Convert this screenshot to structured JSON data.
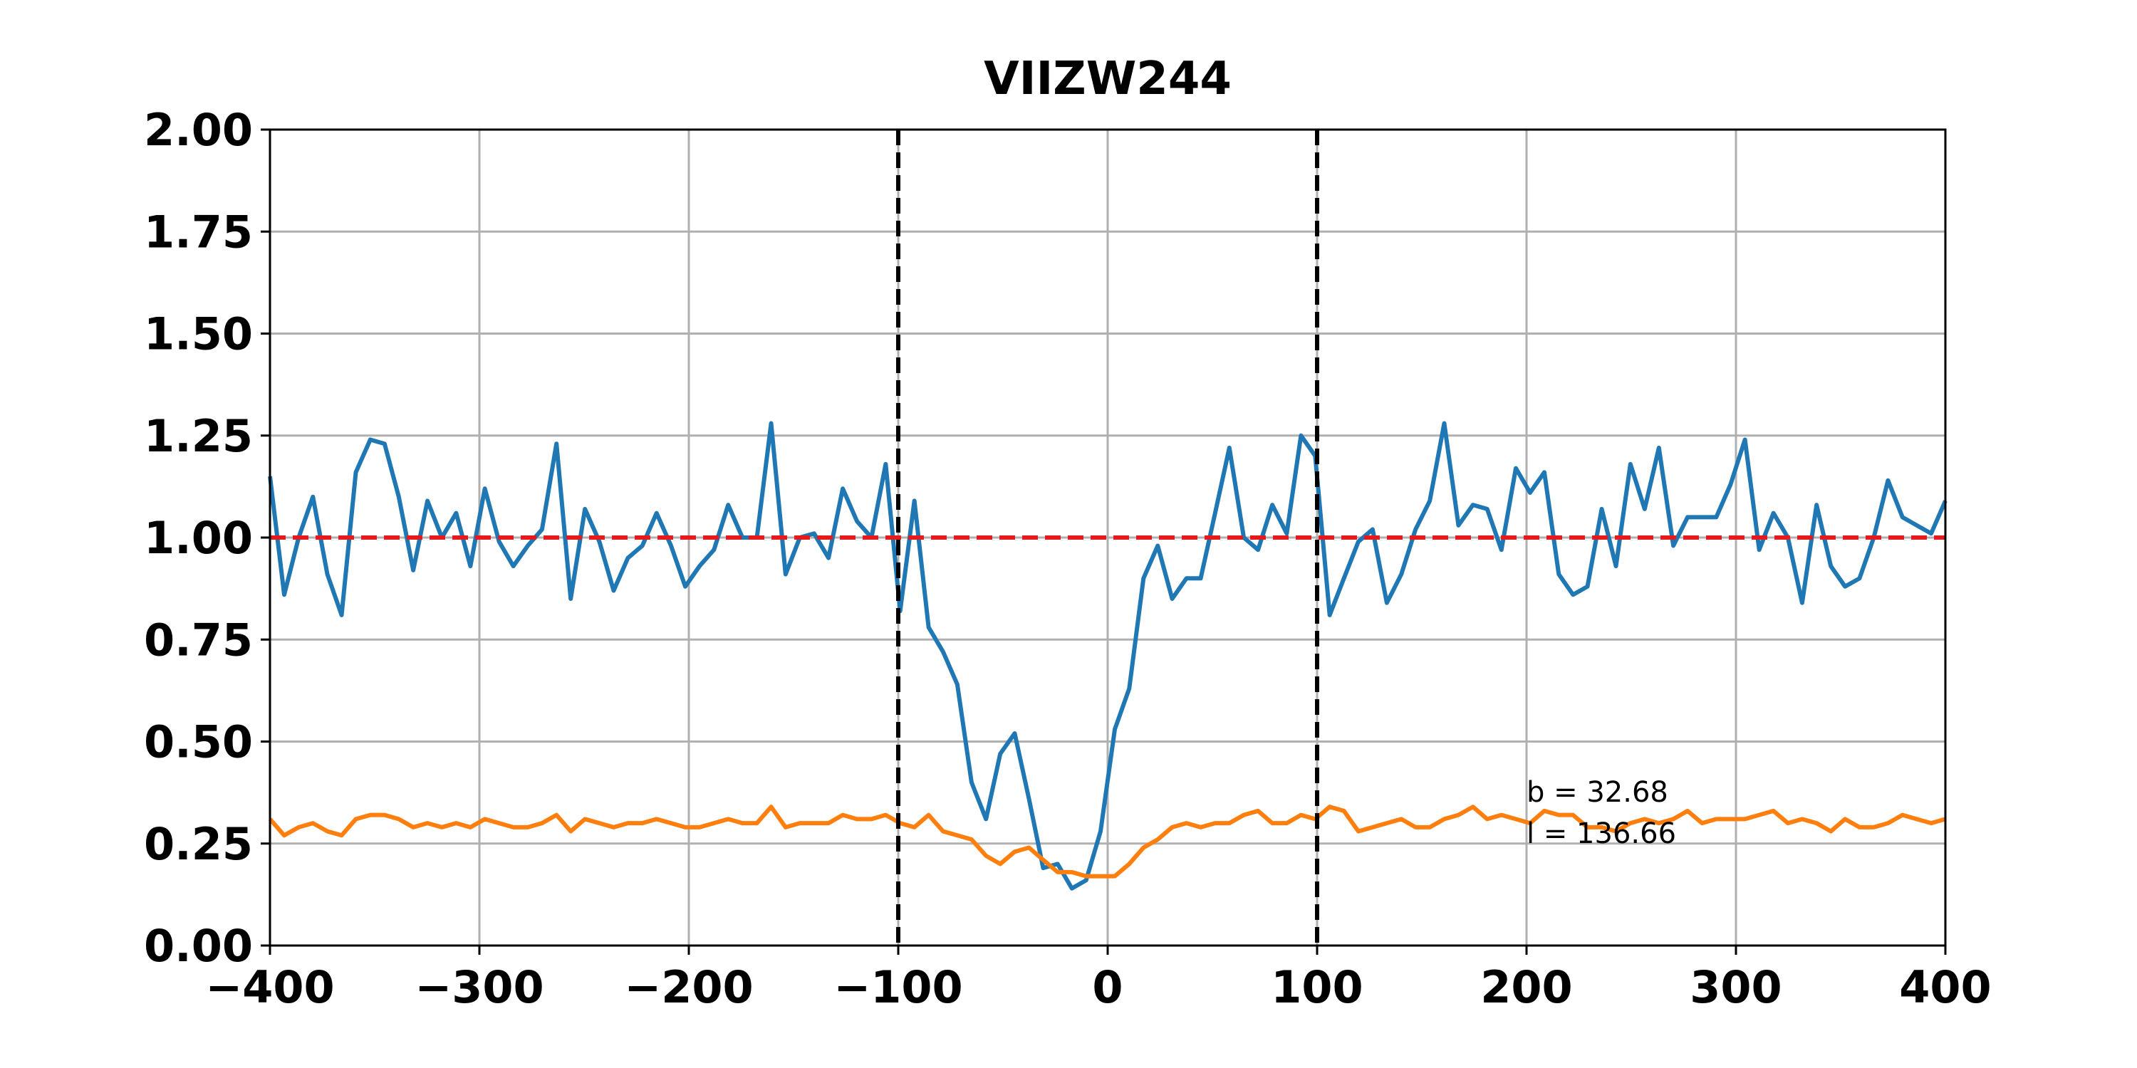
{
  "chart_data": {
    "type": "line",
    "title": "VIIZW244",
    "x": [
      -400.0,
      -393.2,
      -386.3,
      -379.5,
      -372.6,
      -365.8,
      -359.0,
      -352.1,
      -345.3,
      -338.5,
      -331.6,
      -324.8,
      -317.9,
      -311.1,
      -304.3,
      -297.4,
      -290.6,
      -283.8,
      -276.9,
      -270.1,
      -263.2,
      -256.4,
      -249.6,
      -242.7,
      -235.9,
      -229.1,
      -222.2,
      -215.4,
      -208.5,
      -201.7,
      -194.9,
      -188.0,
      -181.2,
      -174.4,
      -167.5,
      -160.7,
      -153.8,
      -147.0,
      -140.2,
      -133.3,
      -126.5,
      -119.7,
      -112.8,
      -106.0,
      -99.1,
      -92.3,
      -85.5,
      -78.6,
      -71.8,
      -65.0,
      -58.1,
      -51.3,
      -44.4,
      -37.6,
      -30.8,
      -23.9,
      -17.1,
      -10.3,
      -3.4,
      3.4,
      10.3,
      17.1,
      23.9,
      30.8,
      37.6,
      44.4,
      51.3,
      58.1,
      65.0,
      71.8,
      78.6,
      85.5,
      92.3,
      99.1,
      106.0,
      112.8,
      119.7,
      126.5,
      133.3,
      140.2,
      147.0,
      153.8,
      160.7,
      167.5,
      174.4,
      181.2,
      188.0,
      194.9,
      201.7,
      208.5,
      215.4,
      222.2,
      229.1,
      235.9,
      242.7,
      249.6,
      256.4,
      263.2,
      270.1,
      276.9,
      283.8,
      290.6,
      297.4,
      304.3,
      311.1,
      317.9,
      324.8,
      331.6,
      338.5,
      345.3,
      352.1,
      359.0,
      365.8,
      372.6,
      379.5,
      386.3,
      393.2,
      400.0
    ],
    "series": [
      {
        "color": "#1f77b4",
        "values": [
          1.15,
          0.86,
          1.0,
          1.1,
          0.91,
          0.81,
          1.16,
          1.24,
          1.23,
          1.1,
          0.92,
          1.09,
          1.0,
          1.06,
          0.93,
          1.12,
          0.99,
          0.93,
          0.98,
          1.02,
          1.23,
          0.85,
          1.07,
          0.99,
          0.87,
          0.95,
          0.98,
          1.06,
          0.98,
          0.88,
          0.93,
          0.97,
          1.08,
          1.0,
          1.0,
          1.28,
          0.91,
          1.0,
          1.01,
          0.95,
          1.12,
          1.04,
          1.0,
          1.18,
          0.82,
          1.09,
          0.78,
          0.72,
          0.64,
          0.4,
          0.31,
          0.47,
          0.52,
          0.36,
          0.19,
          0.2,
          0.14,
          0.16,
          0.28,
          0.53,
          0.63,
          0.9,
          0.98,
          0.85,
          0.9,
          0.9,
          1.06,
          1.22,
          1.0,
          0.97,
          1.08,
          1.01,
          1.25,
          1.2,
          0.81,
          0.9,
          0.99,
          1.02,
          0.84,
          0.91,
          1.02,
          1.09,
          1.28,
          1.03,
          1.08,
          1.07,
          0.97,
          1.17,
          1.11,
          1.16,
          0.91,
          0.86,
          0.88,
          1.07,
          0.93,
          1.18,
          1.07,
          1.22,
          0.98,
          1.05,
          1.05,
          1.05,
          1.13,
          1.24,
          0.97,
          1.06,
          1.0,
          0.84,
          1.08,
          0.93,
          0.88,
          0.9,
          1.0,
          1.14,
          1.05,
          1.03,
          1.01,
          1.09
        ]
      },
      {
        "color": "#ff7f0e",
        "values": [
          0.31,
          0.27,
          0.29,
          0.3,
          0.28,
          0.27,
          0.31,
          0.32,
          0.32,
          0.31,
          0.29,
          0.3,
          0.29,
          0.3,
          0.29,
          0.31,
          0.3,
          0.29,
          0.29,
          0.3,
          0.32,
          0.28,
          0.31,
          0.3,
          0.29,
          0.3,
          0.3,
          0.31,
          0.3,
          0.29,
          0.29,
          0.3,
          0.31,
          0.3,
          0.3,
          0.34,
          0.29,
          0.3,
          0.3,
          0.3,
          0.32,
          0.31,
          0.31,
          0.32,
          0.3,
          0.29,
          0.32,
          0.28,
          0.27,
          0.26,
          0.22,
          0.2,
          0.23,
          0.24,
          0.21,
          0.18,
          0.18,
          0.17,
          0.17,
          0.17,
          0.2,
          0.24,
          0.26,
          0.29,
          0.3,
          0.29,
          0.3,
          0.3,
          0.32,
          0.33,
          0.3,
          0.3,
          0.32,
          0.31,
          0.34,
          0.33,
          0.28,
          0.29,
          0.3,
          0.31,
          0.29,
          0.29,
          0.31,
          0.32,
          0.34,
          0.31,
          0.32,
          0.31,
          0.3,
          0.33,
          0.32,
          0.32,
          0.29,
          0.29,
          0.28,
          0.3,
          0.31,
          0.3,
          0.31,
          0.33,
          0.3,
          0.31,
          0.31,
          0.31,
          0.32,
          0.33,
          0.3,
          0.31,
          0.3,
          0.28,
          0.31,
          0.29,
          0.29,
          0.3,
          0.32,
          0.31,
          0.3,
          0.31
        ]
      }
    ],
    "hlines": [
      {
        "value": 1,
        "color": "#e41a1c"
      }
    ],
    "vlines": [
      {
        "value": -100,
        "color": "#000000"
      },
      {
        "value": 100,
        "color": "#000000"
      }
    ],
    "annotations": [
      "b = 32.68",
      "l = 136.66"
    ],
    "xlim": [
      -400,
      400
    ],
    "ylim": [
      0,
      2
    ],
    "xticks": [
      {
        "value": -400,
        "label": "−400"
      },
      {
        "value": -300,
        "label": "−300"
      },
      {
        "value": -200,
        "label": "−200"
      },
      {
        "value": -100,
        "label": "−100"
      },
      0,
      100,
      200,
      300,
      400
    ],
    "yticks": [
      {
        "value": 0,
        "label": "0.00"
      },
      {
        "value": 0.25,
        "label": "0.25"
      },
      {
        "value": 0.5,
        "label": "0.50"
      },
      {
        "value": 0.75,
        "label": "0.75"
      },
      {
        "value": 1,
        "label": "1.00"
      },
      {
        "value": 1.25,
        "label": "1.25"
      },
      {
        "value": 1.5,
        "label": "1.50"
      },
      {
        "value": 1.75,
        "label": "1.75"
      },
      {
        "value": 2,
        "label": "2.00"
      }
    ],
    "grid": true
  }
}
